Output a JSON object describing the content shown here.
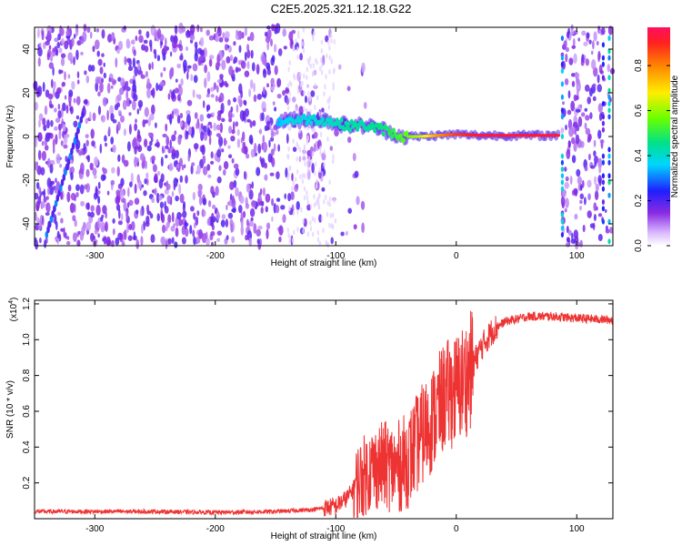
{
  "title": "C2E5.2025.321.12.18.G22",
  "colorbar": {
    "label": "Normalized spectral amplitude",
    "ticks": [
      "0.0",
      "0.2",
      "0.4",
      "0.6",
      "0.8"
    ],
    "tick_values": [
      0.0,
      0.2,
      0.4,
      0.6,
      0.8
    ],
    "range": [
      0,
      0.97
    ]
  },
  "chart_data": [
    {
      "type": "heatmap",
      "name": "spectrogram",
      "xlabel": "Height of straight line (km)",
      "ylabel": "Frequency (Hz)",
      "xlim": [
        -350,
        130
      ],
      "ylim": [
        -50,
        50
      ],
      "xticks": [
        -300,
        -200,
        -100,
        0,
        100
      ],
      "xtick_labels": [
        "-300",
        "-200",
        "-100",
        "0",
        "100"
      ],
      "yticks": [
        -40,
        -20,
        0,
        20,
        40
      ],
      "ytick_labels": [
        "-40",
        "-20",
        "0",
        "20",
        "40"
      ],
      "signal_track": [
        {
          "x": -148,
          "y": 7,
          "amp": 0.35
        },
        {
          "x": -135,
          "y": 7.5,
          "amp": 0.4
        },
        {
          "x": -120,
          "y": 8,
          "amp": 0.4
        },
        {
          "x": -105,
          "y": 7,
          "amp": 0.42
        },
        {
          "x": -90,
          "y": 5,
          "amp": 0.45
        },
        {
          "x": -75,
          "y": 5,
          "amp": 0.45
        },
        {
          "x": -60,
          "y": 3,
          "amp": 0.48
        },
        {
          "x": -45,
          "y": 0,
          "amp": 0.55
        },
        {
          "x": -30,
          "y": 0,
          "amp": 0.65
        },
        {
          "x": -15,
          "y": 0.5,
          "amp": 0.8
        },
        {
          "x": 0,
          "y": 1,
          "amp": 0.9
        },
        {
          "x": 20,
          "y": 0.5,
          "amp": 0.95
        },
        {
          "x": 50,
          "y": 0.5,
          "amp": 0.95
        },
        {
          "x": 85,
          "y": 0.5,
          "amp": 0.95
        }
      ]
    },
    {
      "type": "line",
      "name": "snr",
      "xlabel": "Height of straight line (km)",
      "ylabel": "SNR (10 * v/v)",
      "yscale_label": "(x10",
      "yscale_exp": "4",
      "yscale_close": ")",
      "xlim": [
        -350,
        130
      ],
      "ylim": [
        0,
        1.22
      ],
      "xticks": [
        -300,
        -200,
        -100,
        0,
        100
      ],
      "xtick_labels": [
        "-300",
        "-200",
        "-100",
        "0",
        "100"
      ],
      "yticks": [
        0.2,
        0.4,
        0.6,
        0.8,
        1.0,
        1.2
      ],
      "ytick_labels": [
        "0.2",
        "0.4",
        "0.6",
        "0.8",
        "1.0",
        "1.2"
      ],
      "series": [
        {
          "name": "SNR",
          "color": "#ee3333",
          "x": [
            -350,
            -300,
            -250,
            -200,
            -150,
            -120,
            -100,
            -90,
            -80,
            -70,
            -60,
            -50,
            -40,
            -30,
            -20,
            -10,
            0,
            10,
            20,
            30,
            40,
            60,
            80,
            100,
            130
          ],
          "y": [
            0.04,
            0.04,
            0.04,
            0.035,
            0.04,
            0.05,
            0.07,
            0.12,
            0.22,
            0.28,
            0.3,
            0.28,
            0.33,
            0.45,
            0.55,
            0.68,
            0.72,
            0.8,
            0.95,
            1.05,
            1.1,
            1.13,
            1.13,
            1.12,
            1.11
          ]
        }
      ]
    }
  ]
}
